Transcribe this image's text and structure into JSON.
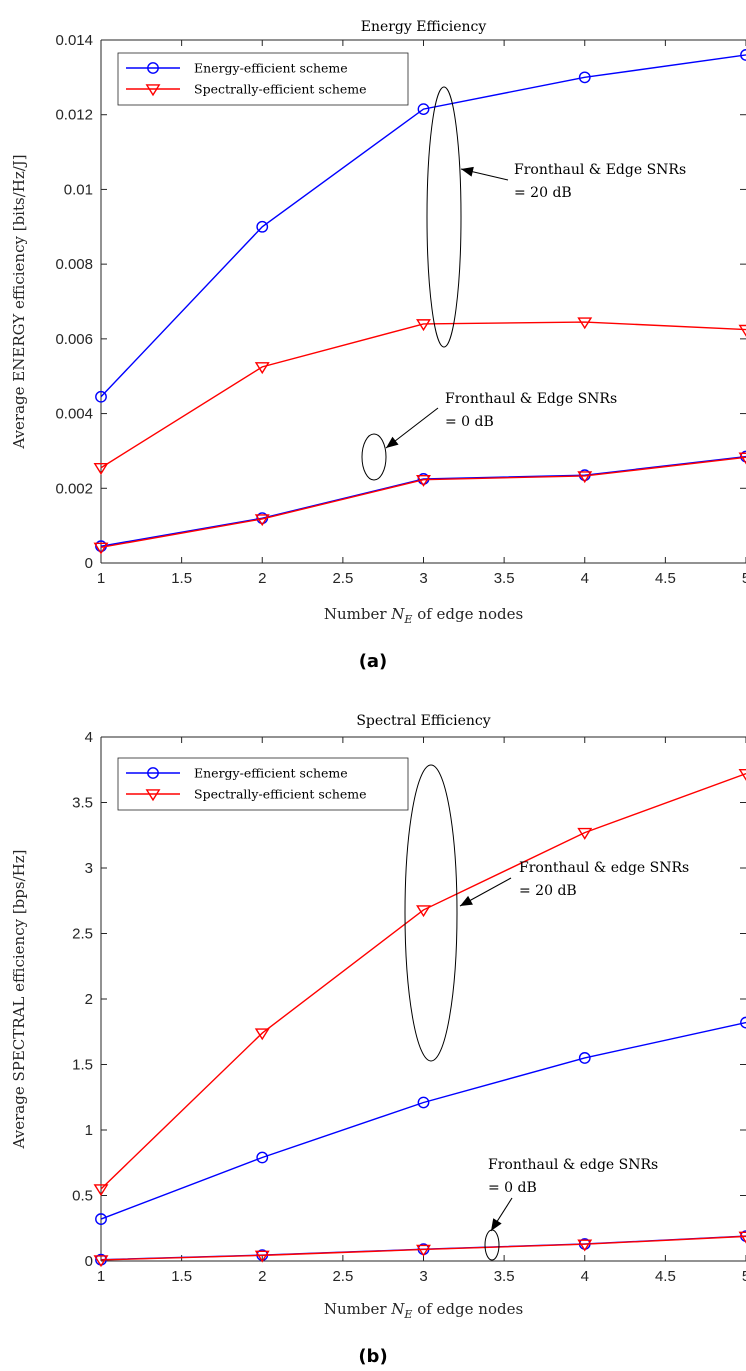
{
  "chart_data": [
    {
      "type": "line",
      "caption": "(a)",
      "title": "Energy Efficiency",
      "xlabel": "Number N_E of edge nodes",
      "xlabel_parts": [
        "Number ",
        "N",
        "E",
        " of edge nodes"
      ],
      "ylabel": "Average ENERGY efficiency [bits/Hz/J]",
      "xlim": [
        1,
        5
      ],
      "ylim": [
        0,
        0.014
      ],
      "xticks": [
        1,
        1.5,
        2,
        2.5,
        3,
        3.5,
        4,
        4.5,
        5
      ],
      "xtick_labels": [
        "1",
        "1.5",
        "2",
        "2.5",
        "3",
        "3.5",
        "4",
        "4.5",
        "5"
      ],
      "yticks": [
        0,
        0.002,
        0.004,
        0.006,
        0.008,
        0.01,
        0.012,
        0.014
      ],
      "ytick_labels": [
        "0",
        "0.002",
        "0.004",
        "0.006",
        "0.008",
        "0.01",
        "0.012",
        "0.014"
      ],
      "legend_position": "top-left",
      "grid": false,
      "x": [
        1,
        2,
        3,
        4,
        5
      ],
      "series": [
        {
          "name": "Energy-efficient scheme",
          "group": "20 dB",
          "marker": "circle",
          "color": "#0000ff",
          "values": [
            0.00445,
            0.009,
            0.01215,
            0.013,
            0.0136
          ],
          "in_legend": true
        },
        {
          "name": "Spectrally-efficient scheme",
          "group": "20 dB",
          "marker": "triangle-down",
          "color": "#ff0000",
          "values": [
            0.00255,
            0.00525,
            0.0064,
            0.00645,
            0.00625
          ],
          "in_legend": true
        },
        {
          "name": "Energy-efficient scheme",
          "group": "0 dB",
          "marker": "circle",
          "color": "#0000ff",
          "values": [
            0.00045,
            0.0012,
            0.00225,
            0.00235,
            0.00285
          ],
          "in_legend": false
        },
        {
          "name": "Spectrally-efficient scheme",
          "group": "0 dB",
          "marker": "triangle-down",
          "color": "#ff0000",
          "values": [
            0.00042,
            0.00118,
            0.00223,
            0.00233,
            0.00283
          ],
          "in_legend": false
        }
      ],
      "annotations": [
        {
          "line1": "Fronthaul & Edge SNRs",
          "line2": "= 20 dB"
        },
        {
          "line1": "Fronthaul & Edge SNRs",
          "line2": "= 0 dB"
        }
      ]
    },
    {
      "type": "line",
      "caption": "(b)",
      "title": "Spectral Efficiency",
      "xlabel": "Number N_E of edge nodes",
      "xlabel_parts": [
        "Number ",
        "N",
        "E",
        " of edge nodes"
      ],
      "ylabel": "Average SPECTRAL efficiency [bps/Hz]",
      "xlim": [
        1,
        5
      ],
      "ylim": [
        0,
        4
      ],
      "xticks": [
        1,
        1.5,
        2,
        2.5,
        3,
        3.5,
        4,
        4.5,
        5
      ],
      "xtick_labels": [
        "1",
        "1.5",
        "2",
        "2.5",
        "3",
        "3.5",
        "4",
        "4.5",
        "5"
      ],
      "yticks": [
        0,
        0.5,
        1,
        1.5,
        2,
        2.5,
        3,
        3.5,
        4
      ],
      "ytick_labels": [
        "0",
        "0.5",
        "1",
        "1.5",
        "2",
        "2.5",
        "3",
        "3.5",
        "4"
      ],
      "legend_position": "top-left",
      "grid": false,
      "x": [
        1,
        2,
        3,
        4,
        5
      ],
      "series": [
        {
          "name": "Energy-efficient scheme",
          "group": "20 dB",
          "marker": "circle",
          "color": "#0000ff",
          "values": [
            0.32,
            0.79,
            1.21,
            1.55,
            1.82
          ],
          "in_legend": true
        },
        {
          "name": "Spectrally-efficient scheme",
          "group": "20 dB",
          "marker": "triangle-down",
          "color": "#ff0000",
          "values": [
            0.55,
            1.74,
            2.68,
            3.27,
            3.72
          ],
          "in_legend": true
        },
        {
          "name": "Energy-efficient scheme",
          "group": "0 dB",
          "marker": "circle",
          "color": "#0000ff",
          "values": [
            0.01,
            0.045,
            0.09,
            0.13,
            0.19
          ],
          "in_legend": false
        },
        {
          "name": "Spectrally-efficient scheme",
          "group": "0 dB",
          "marker": "triangle-down",
          "color": "#ff0000",
          "values": [
            0.008,
            0.043,
            0.088,
            0.128,
            0.188
          ],
          "in_legend": false
        }
      ],
      "annotations": [
        {
          "line1": "Fronthaul & edge SNRs",
          "line2": "= 20 dB"
        },
        {
          "line1": "Fronthaul & edge SNRs",
          "line2": "= 0 dB"
        }
      ]
    }
  ]
}
